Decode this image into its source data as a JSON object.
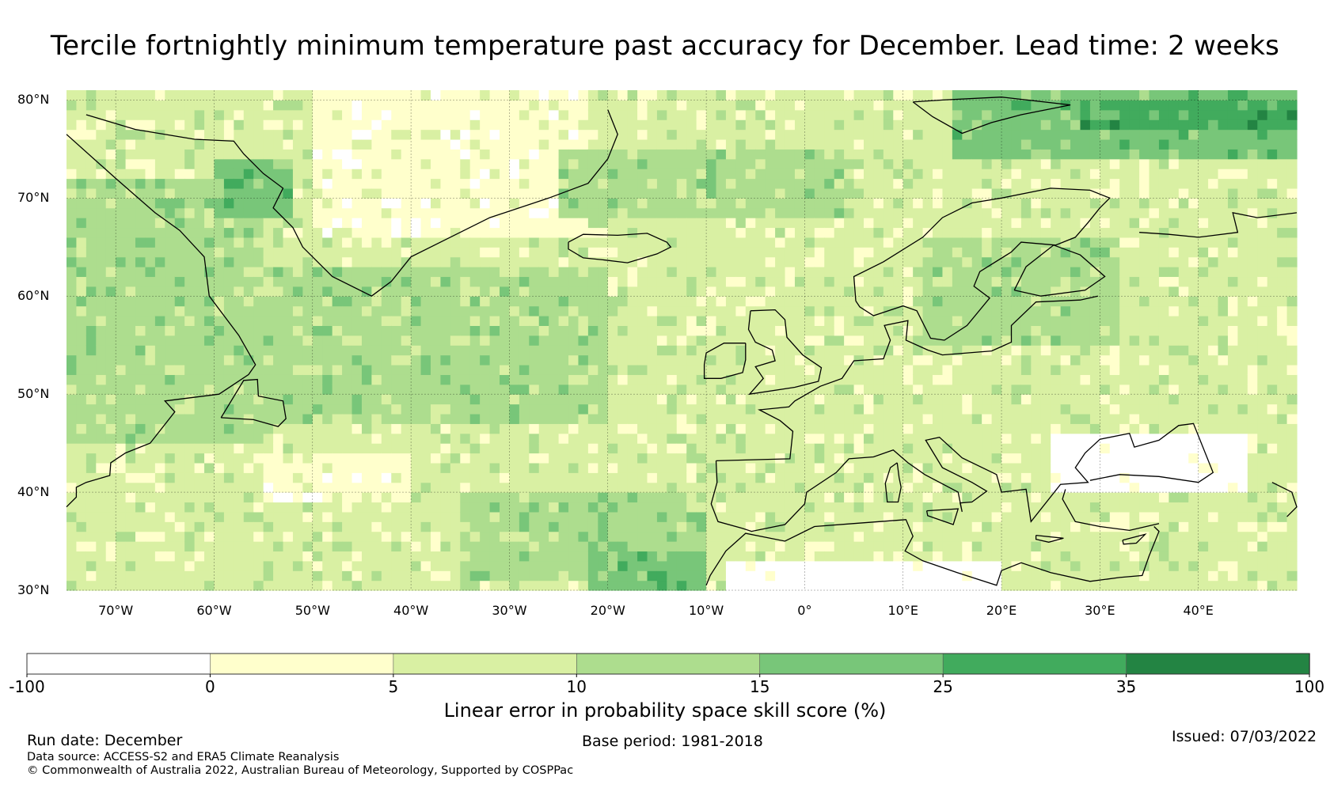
{
  "title": "Tercile fortnightly minimum temperature past accuracy for December. Lead time: 2 weeks",
  "map": {
    "lon_range": [
      -75,
      50
    ],
    "lat_range": [
      30,
      81
    ],
    "lat_ticks": [
      {
        "value": 80,
        "label": "80°N"
      },
      {
        "value": 70,
        "label": "70°N"
      },
      {
        "value": 60,
        "label": "60°N"
      },
      {
        "value": 50,
        "label": "50°N"
      },
      {
        "value": 40,
        "label": "40°N"
      },
      {
        "value": 30,
        "label": "30°N"
      }
    ],
    "lon_ticks": [
      {
        "value": -70,
        "label": "70°W"
      },
      {
        "value": -60,
        "label": "60°W"
      },
      {
        "value": -50,
        "label": "50°W"
      },
      {
        "value": -40,
        "label": "40°W"
      },
      {
        "value": -30,
        "label": "30°W"
      },
      {
        "value": -20,
        "label": "20°W"
      },
      {
        "value": -10,
        "label": "10°W"
      },
      {
        "value": 0,
        "label": "0°"
      },
      {
        "value": 10,
        "label": "10°E"
      },
      {
        "value": 20,
        "label": "20°E"
      },
      {
        "value": 30,
        "label": "30°E"
      },
      {
        "value": 40,
        "label": "40°E"
      }
    ],
    "skill_regions": [
      {
        "name": "greenland-ice-sheet",
        "category": 1,
        "lon": [
          -50,
          -22
        ],
        "lat": [
          66,
          81
        ]
      },
      {
        "name": "norwegian-sea-band",
        "category": 3,
        "lon": [
          -25,
          5
        ],
        "lat": [
          68,
          75
        ]
      },
      {
        "name": "north-atlantic-central",
        "category": 3,
        "lon": [
          -60,
          -20
        ],
        "lat": [
          47,
          63
        ]
      },
      {
        "name": "labrador-canada",
        "category": 3,
        "lon": [
          -75,
          -55
        ],
        "lat": [
          45,
          72
        ]
      },
      {
        "name": "baffin-high",
        "category": 4,
        "lon": [
          -60,
          -52
        ],
        "lat": [
          68,
          74
        ]
      },
      {
        "name": "barents-high",
        "category": 4,
        "lon": [
          15,
          50
        ],
        "lat": [
          74,
          81
        ]
      },
      {
        "name": "barents-max",
        "category": 5,
        "lon": [
          28,
          50
        ],
        "lat": [
          77,
          80
        ]
      },
      {
        "name": "scandinavia",
        "category": 3,
        "lon": [
          12,
          32
        ],
        "lat": [
          55,
          66
        ]
      },
      {
        "name": "subtropical-atlantic",
        "category": 3,
        "lon": [
          -35,
          -10
        ],
        "lat": [
          31,
          40
        ]
      },
      {
        "name": "off-morocco-high",
        "category": 4,
        "lon": [
          -22,
          -10
        ],
        "lat": [
          30,
          34
        ]
      },
      {
        "name": "mid-atlantic-low",
        "category": 1,
        "lon": [
          -55,
          -40
        ],
        "lat": [
          39,
          44
        ]
      },
      {
        "name": "sahara-low",
        "category": 0,
        "lon": [
          -8,
          20
        ],
        "lat": [
          30,
          33
        ]
      },
      {
        "name": "black-sea-low",
        "category": 0,
        "lon": [
          25,
          45
        ],
        "lat": [
          40,
          46
        ]
      },
      {
        "name": "iberia-france",
        "category": 2,
        "lon": [
          -9,
          12
        ],
        "lat": [
          36,
          50
        ]
      }
    ]
  },
  "colorbar": {
    "bounds": [
      -100,
      0,
      5,
      10,
      15,
      25,
      35,
      100
    ],
    "tick_labels": [
      "-100",
      "0",
      "5",
      "10",
      "15",
      "25",
      "35",
      "100"
    ],
    "colors": [
      "#ffffff",
      "#ffffcc",
      "#d9f0a3",
      "#addd8e",
      "#78c679",
      "#41ab5d",
      "#238443"
    ],
    "label": "Linear error in probability space skill score (%)"
  },
  "footer": {
    "run_date": "Run date: December",
    "base_period": "Base period: 1981-2018",
    "issued": "Issued: 07/03/2022",
    "data_source": "Data source: ACCESS-S2 and ERA5 Climate Reanalysis",
    "copyright": "© Commonwealth of Australia 2022, Australian Bureau of Meteorology, Supported by COSPPac"
  }
}
